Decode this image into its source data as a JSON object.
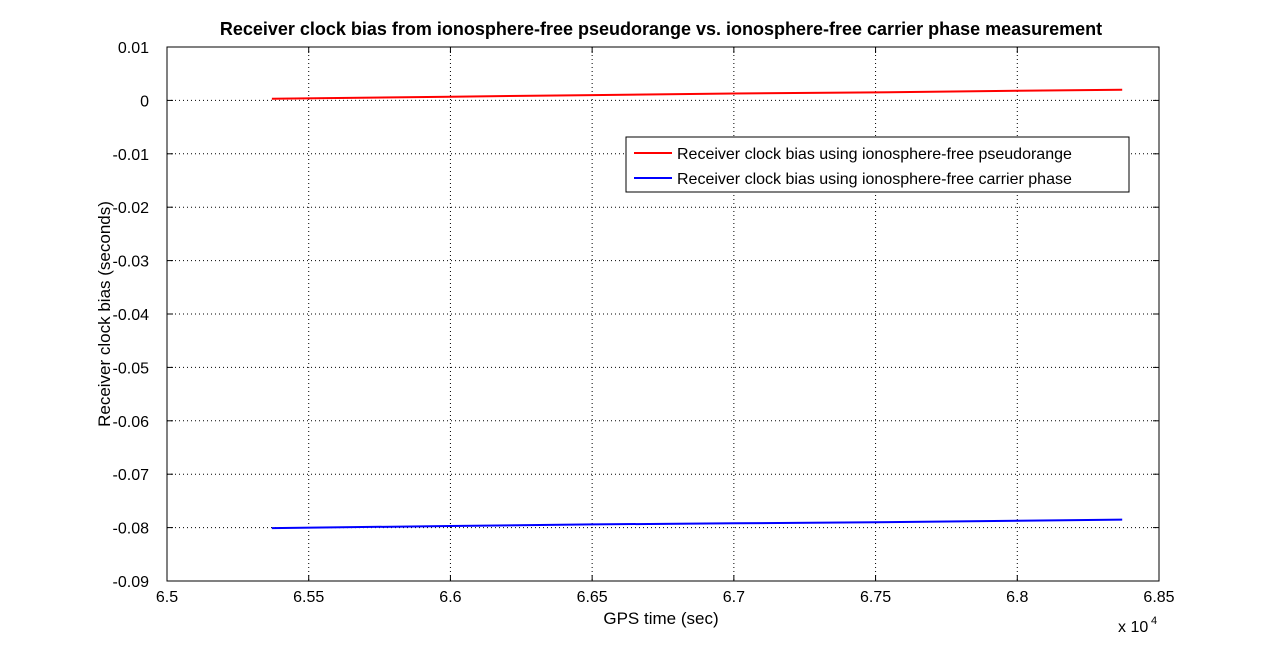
{
  "chart_data": {
    "type": "line",
    "title": "Receiver clock bias from ionosphere-free pseudorange vs. ionosphere-free carrier phase measurement",
    "xlabel": "GPS time (sec)",
    "ylabel": "Receiver clock bias (seconds)",
    "x_multiplier_label": "x 10",
    "x_multiplier_exponent": "4",
    "xlim": [
      6.5,
      6.85
    ],
    "ylim": [
      -0.09,
      0.01
    ],
    "xticks": [
      6.5,
      6.55,
      6.6,
      6.65,
      6.7,
      6.75,
      6.8,
      6.85
    ],
    "xtick_labels": [
      "6.5",
      "6.55",
      "6.6",
      "6.65",
      "6.7",
      "6.75",
      "6.8",
      "6.85"
    ],
    "yticks": [
      0.01,
      0,
      -0.01,
      -0.02,
      -0.03,
      -0.04,
      -0.05,
      -0.06,
      -0.07,
      -0.08,
      -0.09
    ],
    "ytick_labels": [
      "0.01",
      "0",
      "-0.01",
      "-0.02",
      "-0.03",
      "-0.04",
      "-0.05",
      "-0.06",
      "-0.07",
      "-0.08",
      "-0.09"
    ],
    "grid": true,
    "legend_position": "upper-right",
    "series": [
      {
        "name": "Receiver clock bias using ionosphere-free pseudorange",
        "color": "#ff0000",
        "x": [
          6.537,
          6.6,
          6.65,
          6.7,
          6.75,
          6.8,
          6.837
        ],
        "y": [
          0.0003,
          0.0007,
          0.001,
          0.0013,
          0.0015,
          0.0018,
          0.002
        ]
      },
      {
        "name": "Receiver clock bias using ionosphere-free carrier phase",
        "color": "#0000ff",
        "x": [
          6.537,
          6.6,
          6.65,
          6.7,
          6.75,
          6.8,
          6.837
        ],
        "y": [
          -0.0801,
          -0.0797,
          -0.0794,
          -0.0792,
          -0.079,
          -0.0787,
          -0.0785
        ]
      }
    ]
  }
}
